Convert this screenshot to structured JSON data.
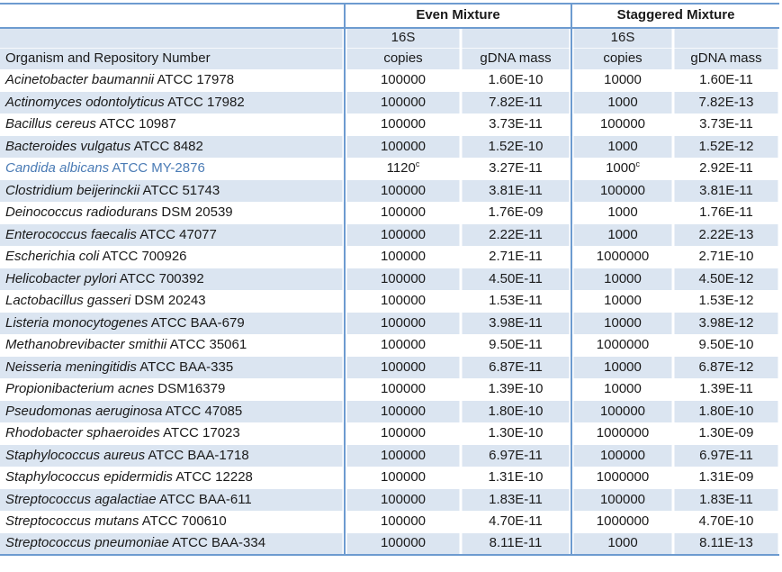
{
  "table": {
    "group_headers": {
      "even": "Even Mixture",
      "staggered": "Staggered Mixture"
    },
    "subheaders": {
      "s16": "16S",
      "copies": "copies",
      "gdna": "gDNA mass",
      "organism": "Organism and Repository Number"
    },
    "footnote_marker": "c"
  },
  "colors": {
    "stripe": "#dbe5f1",
    "border": "#6d9bd0",
    "highlight_text": "#4a7bb5"
  },
  "chart_data": {
    "type": "table",
    "column_groups": [
      "",
      "Even Mixture",
      "Staggered Mixture"
    ],
    "columns": [
      "Organism and Repository Number",
      "Even Mixture 16S copies",
      "Even Mixture gDNA mass",
      "Staggered Mixture 16S copies",
      "Staggered Mixture gDNA mass"
    ],
    "rows": [
      {
        "species": "Acinetobacter baumannii",
        "repo": "ATCC 17978",
        "even_copies": "100000",
        "even_gdna": "1.60E-10",
        "stag_copies": "10000",
        "stag_gdna": "1.60E-11"
      },
      {
        "species": "Actinomyces odontolyticus",
        "repo": "ATCC 17982",
        "even_copies": "100000",
        "even_gdna": "7.82E-11",
        "stag_copies": "1000",
        "stag_gdna": "7.82E-13"
      },
      {
        "species": "Bacillus cereus",
        "repo": "ATCC 10987",
        "even_copies": "100000",
        "even_gdna": "3.73E-11",
        "stag_copies": "100000",
        "stag_gdna": "3.73E-11"
      },
      {
        "species": "Bacteroides vulgatus",
        "repo": "ATCC 8482",
        "even_copies": "100000",
        "even_gdna": "1.52E-10",
        "stag_copies": "1000",
        "stag_gdna": "1.52E-12"
      },
      {
        "species": "Candida albicans",
        "repo": "ATCC MY-2876",
        "highlight": true,
        "even_copies": "1120",
        "even_copies_sup": "c",
        "even_gdna": "3.27E-11",
        "stag_copies": "1000",
        "stag_copies_sup": "c",
        "stag_gdna": "2.92E-11"
      },
      {
        "species": "Clostridium beijerinckii",
        "repo": "ATCC 51743",
        "even_copies": "100000",
        "even_gdna": "3.81E-11",
        "stag_copies": "100000",
        "stag_gdna": "3.81E-11"
      },
      {
        "species": "Deinococcus radiodurans",
        "repo": "DSM 20539",
        "even_copies": "100000",
        "even_gdna": "1.76E-09",
        "stag_copies": "1000",
        "stag_gdna": "1.76E-11"
      },
      {
        "species": "Enterococcus faecalis",
        "repo": "ATCC 47077",
        "even_copies": "100000",
        "even_gdna": "2.22E-11",
        "stag_copies": "1000",
        "stag_gdna": "2.22E-13"
      },
      {
        "species": "Escherichia coli",
        "repo": "ATCC 700926",
        "even_copies": "100000",
        "even_gdna": "2.71E-11",
        "stag_copies": "1000000",
        "stag_gdna": "2.71E-10"
      },
      {
        "species": "Helicobacter pylori",
        "repo": "ATCC 700392",
        "even_copies": "100000",
        "even_gdna": "4.50E-11",
        "stag_copies": "10000",
        "stag_gdna": "4.50E-12"
      },
      {
        "species": "Lactobacillus gasseri",
        "repo": "DSM 20243",
        "even_copies": "100000",
        "even_gdna": "1.53E-11",
        "stag_copies": "10000",
        "stag_gdna": "1.53E-12"
      },
      {
        "species": "Listeria monocytogenes",
        "repo": "ATCC BAA-679",
        "even_copies": "100000",
        "even_gdna": "3.98E-11",
        "stag_copies": "10000",
        "stag_gdna": "3.98E-12"
      },
      {
        "species": "Methanobrevibacter smithii",
        "repo": "ATCC 35061",
        "even_copies": "100000",
        "even_gdna": "9.50E-11",
        "stag_copies": "1000000",
        "stag_gdna": "9.50E-10"
      },
      {
        "species": "Neisseria meningitidis",
        "repo": "ATCC BAA-335",
        "even_copies": "100000",
        "even_gdna": "6.87E-11",
        "stag_copies": "10000",
        "stag_gdna": "6.87E-12"
      },
      {
        "species": "Propionibacterium acnes",
        "repo": "DSM16379",
        "even_copies": "100000",
        "even_gdna": "1.39E-10",
        "stag_copies": "10000",
        "stag_gdna": "1.39E-11"
      },
      {
        "species": "Pseudomonas aeruginosa",
        "repo": "ATCC 47085",
        "even_copies": "100000",
        "even_gdna": "1.80E-10",
        "stag_copies": "100000",
        "stag_gdna": "1.80E-10"
      },
      {
        "species": "Rhodobacter sphaeroides",
        "repo": "ATCC 17023",
        "even_copies": "100000",
        "even_gdna": "1.30E-10",
        "stag_copies": "1000000",
        "stag_gdna": "1.30E-09"
      },
      {
        "species": "Staphylococcus aureus",
        "repo": "ATCC BAA-1718",
        "even_copies": "100000",
        "even_gdna": "6.97E-11",
        "stag_copies": "100000",
        "stag_gdna": "6.97E-11"
      },
      {
        "species": "Staphylococcus epidermidis",
        "repo": "ATCC 12228",
        "even_copies": "100000",
        "even_gdna": "1.31E-10",
        "stag_copies": "1000000",
        "stag_gdna": "1.31E-09"
      },
      {
        "species": "Streptococcus agalactiae",
        "repo": "ATCC BAA-611",
        "even_copies": "100000",
        "even_gdna": "1.83E-11",
        "stag_copies": "100000",
        "stag_gdna": "1.83E-11"
      },
      {
        "species": "Streptococcus mutans",
        "repo": "ATCC 700610",
        "even_copies": "100000",
        "even_gdna": "4.70E-11",
        "stag_copies": "1000000",
        "stag_gdna": "4.70E-10"
      },
      {
        "species": "Streptococcus pneumoniae",
        "repo": "ATCC BAA-334",
        "even_copies": "100000",
        "even_gdna": "8.11E-11",
        "stag_copies": "1000",
        "stag_gdna": "8.11E-13"
      }
    ]
  }
}
